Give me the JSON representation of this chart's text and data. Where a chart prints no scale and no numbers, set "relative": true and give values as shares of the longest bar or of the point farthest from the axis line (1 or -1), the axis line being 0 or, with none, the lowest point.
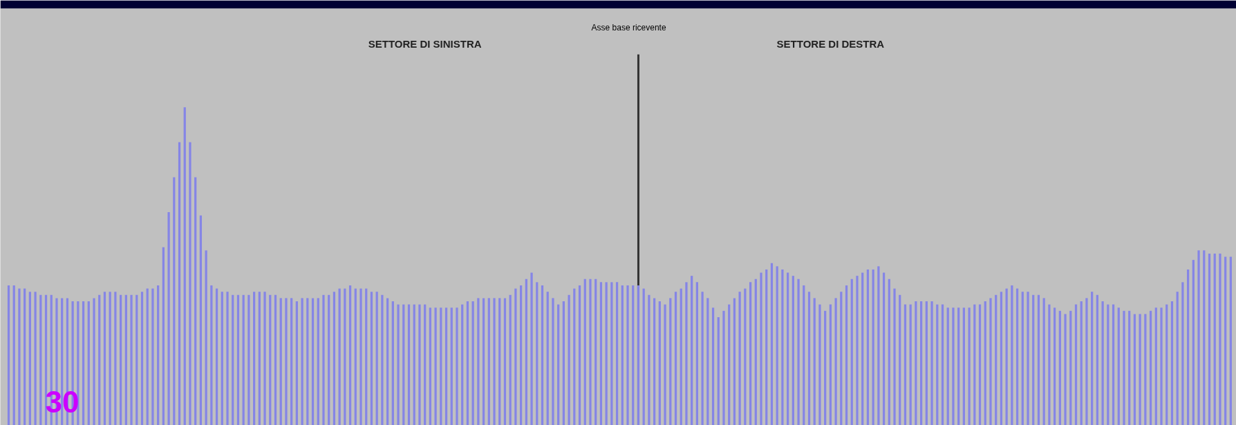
{
  "chart_data": {
    "type": "bar",
    "relative": true,
    "grid": false,
    "tick_labels": false,
    "categories": [
      null,
      null,
      null,
      null,
      null,
      null,
      null,
      null,
      null,
      null,
      null,
      null,
      null,
      null,
      null,
      null,
      null,
      null,
      null,
      null,
      null,
      null,
      null,
      null,
      null,
      null,
      null,
      null,
      null,
      null,
      null,
      null,
      null,
      null,
      null,
      null,
      null,
      null,
      null,
      null,
      null,
      null,
      null,
      null,
      null,
      null,
      null,
      null,
      null,
      null,
      null,
      null,
      null,
      null,
      null,
      null,
      null,
      null,
      null,
      null,
      null,
      null,
      null,
      null,
      null,
      null,
      null,
      null,
      null,
      null,
      null,
      null,
      null,
      null,
      null,
      null,
      null,
      null,
      null,
      null,
      null,
      null,
      null,
      null,
      null,
      null,
      null,
      null,
      null,
      null,
      null,
      null,
      null,
      null,
      null,
      null,
      null,
      null,
      null,
      null,
      null,
      null,
      null,
      null,
      null,
      null,
      null,
      null,
      null,
      null,
      null,
      null,
      null,
      null,
      null,
      null,
      null,
      null,
      null,
      null,
      null,
      null,
      null,
      null,
      null,
      null,
      null,
      null,
      null,
      null,
      null,
      null,
      null,
      null,
      null,
      null,
      null,
      null,
      null,
      null,
      null,
      null,
      null,
      null,
      null,
      null,
      null,
      null,
      null,
      null,
      null,
      null,
      null,
      null,
      null,
      null,
      null,
      null,
      null,
      null,
      null,
      null,
      null,
      null,
      null,
      null,
      null,
      null,
      null,
      null,
      null,
      null,
      null,
      null,
      null,
      null,
      null,
      null,
      null,
      null,
      null,
      null,
      null,
      null,
      null,
      null,
      null,
      null,
      null,
      null,
      null,
      null,
      null,
      null,
      null,
      null,
      null,
      null,
      null,
      null,
      null,
      null,
      null,
      null,
      null,
      null,
      null,
      null,
      null,
      null,
      null,
      null,
      null,
      null,
      null,
      null,
      null,
      null,
      null,
      null,
      null,
      null,
      null,
      null,
      null,
      null,
      null,
      null,
      null,
      null
    ],
    "series": [
      {
        "color": "#8585e6",
        "values": [
          0.44,
          0.44,
          0.43,
          0.43,
          0.42,
          0.42,
          0.41,
          0.41,
          0.41,
          0.4,
          0.4,
          0.4,
          0.39,
          0.39,
          0.39,
          0.39,
          0.4,
          0.41,
          0.42,
          0.42,
          0.42,
          0.41,
          0.41,
          0.41,
          0.41,
          0.42,
          0.43,
          0.43,
          0.44,
          0.56,
          0.67,
          0.78,
          0.89,
          1.0,
          0.89,
          0.78,
          0.66,
          0.55,
          0.44,
          0.43,
          0.42,
          0.42,
          0.41,
          0.41,
          0.41,
          0.41,
          0.42,
          0.42,
          0.42,
          0.41,
          0.41,
          0.4,
          0.4,
          0.4,
          0.39,
          0.4,
          0.4,
          0.4,
          0.4,
          0.41,
          0.41,
          0.42,
          0.43,
          0.43,
          0.44,
          0.43,
          0.43,
          0.43,
          0.42,
          0.42,
          0.41,
          0.4,
          0.39,
          0.38,
          0.38,
          0.38,
          0.38,
          0.38,
          0.38,
          0.37,
          0.37,
          0.37,
          0.37,
          0.37,
          0.37,
          0.38,
          0.39,
          0.39,
          0.4,
          0.4,
          0.4,
          0.4,
          0.4,
          0.4,
          0.41,
          0.43,
          0.44,
          0.46,
          0.48,
          0.45,
          0.44,
          0.42,
          0.4,
          0.38,
          0.39,
          0.41,
          0.43,
          0.44,
          0.46,
          0.46,
          0.46,
          0.45,
          0.45,
          0.45,
          0.45,
          0.44,
          0.44,
          0.44,
          0.44,
          0.43,
          0.41,
          0.4,
          0.39,
          0.38,
          0.4,
          0.42,
          0.43,
          0.45,
          0.47,
          0.45,
          0.42,
          0.4,
          0.37,
          0.34,
          0.36,
          0.38,
          0.4,
          0.42,
          0.43,
          0.45,
          0.46,
          0.48,
          0.49,
          0.51,
          0.5,
          0.49,
          0.48,
          0.47,
          0.46,
          0.44,
          0.42,
          0.4,
          0.38,
          0.36,
          0.38,
          0.4,
          0.42,
          0.44,
          0.46,
          0.47,
          0.48,
          0.49,
          0.49,
          0.5,
          0.48,
          0.46,
          0.43,
          0.41,
          0.38,
          0.38,
          0.39,
          0.39,
          0.39,
          0.39,
          0.38,
          0.38,
          0.37,
          0.37,
          0.37,
          0.37,
          0.37,
          0.38,
          0.38,
          0.39,
          0.4,
          0.41,
          0.42,
          0.43,
          0.44,
          0.43,
          0.42,
          0.42,
          0.41,
          0.41,
          0.4,
          0.38,
          0.37,
          0.36,
          0.35,
          0.36,
          0.38,
          0.39,
          0.4,
          0.42,
          0.41,
          0.39,
          0.38,
          0.38,
          0.37,
          0.36,
          0.36,
          0.35,
          0.35,
          0.35,
          0.36,
          0.37,
          0.37,
          0.38,
          0.39,
          0.42,
          0.45,
          0.49,
          0.52,
          0.55,
          0.55,
          0.54,
          0.54,
          0.54,
          0.53,
          0.53
        ]
      }
    ],
    "annotations": [
      "Asse base ricevente",
      "SETTORE DI SINISTRA",
      "SETTORE DI DESTRA",
      "30"
    ]
  }
}
